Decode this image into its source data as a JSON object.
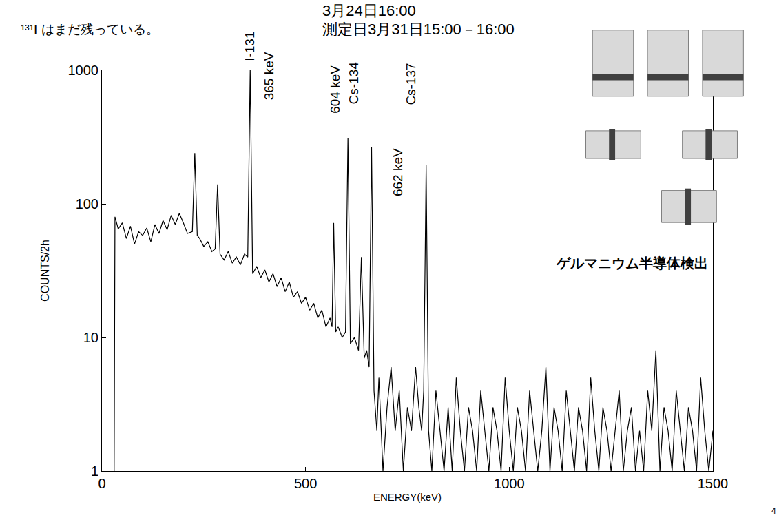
{
  "chart_data": {
    "type": "line",
    "title": "3月24日16:00",
    "subtitle": "測定日3月31日15:00－16:00",
    "x_label": "ENERGY(keV)",
    "y_label": "COUNTS/2h",
    "annotations": [
      "¹³¹I はまだ残っている。",
      "I-131",
      "365 keV",
      "604 keV",
      "Cs-134",
      "Cs-137",
      "662 keV",
      "ゲルマニウム半導体検出",
      "4"
    ],
    "color": "#000000",
    "log": "y",
    "grid": false,
    "xlim": [
      0,
      1500
    ],
    "xticks": [
      0,
      500,
      1000,
      1500
    ],
    "ylim": [
      1,
      1000
    ],
    "yticks": [
      1,
      10,
      100,
      1000
    ],
    "x": [
      30,
      32,
      40,
      50,
      60,
      70,
      80,
      90,
      100,
      110,
      120,
      130,
      140,
      150,
      160,
      170,
      180,
      190,
      200,
      210,
      222,
      228,
      234,
      240,
      250,
      260,
      270,
      278,
      284,
      290,
      300,
      310,
      320,
      330,
      340,
      350,
      358,
      364,
      370,
      380,
      390,
      400,
      410,
      420,
      430,
      440,
      450,
      460,
      470,
      480,
      490,
      500,
      510,
      520,
      530,
      540,
      550,
      560,
      565,
      569,
      574,
      580,
      590,
      598,
      604,
      610,
      620,
      630,
      637,
      644,
      650,
      656,
      662,
      668,
      675,
      680,
      690,
      700,
      710,
      720,
      730,
      740,
      750,
      760,
      770,
      778,
      785,
      790,
      796,
      802,
      810,
      820,
      830,
      840,
      850,
      860,
      870,
      880,
      890,
      900,
      910,
      920,
      930,
      940,
      950,
      960,
      970,
      980,
      990,
      1000,
      1010,
      1020,
      1030,
      1040,
      1050,
      1060,
      1070,
      1080,
      1090,
      1100,
      1110,
      1120,
      1130,
      1140,
      1150,
      1160,
      1170,
      1180,
      1190,
      1200,
      1210,
      1220,
      1230,
      1240,
      1250,
      1260,
      1270,
      1280,
      1290,
      1300,
      1310,
      1320,
      1330,
      1340,
      1350,
      1360,
      1370,
      1380,
      1390,
      1400,
      1410,
      1420,
      1430,
      1440,
      1450,
      1460,
      1470,
      1480,
      1490,
      1500
    ],
    "values": [
      1,
      80,
      65,
      72,
      55,
      68,
      50,
      62,
      58,
      66,
      52,
      70,
      60,
      75,
      64,
      82,
      70,
      85,
      72,
      60,
      62,
      240,
      58,
      55,
      48,
      52,
      44,
      46,
      140,
      42,
      38,
      44,
      36,
      40,
      35,
      42,
      40,
      1000,
      30,
      34,
      28,
      32,
      26,
      30,
      24,
      28,
      22,
      26,
      20,
      22,
      18,
      20,
      16,
      18,
      14,
      16,
      12,
      14,
      12,
      72,
      11,
      12,
      10,
      11,
      310,
      9,
      10,
      8,
      40,
      7,
      8,
      6,
      265,
      4,
      2,
      5,
      1,
      3,
      6,
      2,
      4,
      1,
      3,
      2,
      6,
      3,
      2,
      4,
      195,
      2,
      1,
      4,
      2,
      1,
      3,
      1,
      5,
      2,
      1,
      3,
      2,
      1,
      4,
      2,
      1,
      3,
      2,
      1,
      5,
      2,
      1,
      3,
      2,
      1,
      4,
      2,
      1,
      2,
      6,
      1,
      3,
      2,
      1,
      4,
      2,
      1,
      3,
      2,
      1,
      5,
      2,
      1,
      3,
      2,
      1,
      2,
      4,
      1,
      2,
      3,
      1,
      2,
      1,
      4,
      2,
      8,
      1,
      3,
      2,
      1,
      4,
      2,
      1,
      3,
      2,
      1,
      5,
      2,
      1,
      2
    ]
  }
}
